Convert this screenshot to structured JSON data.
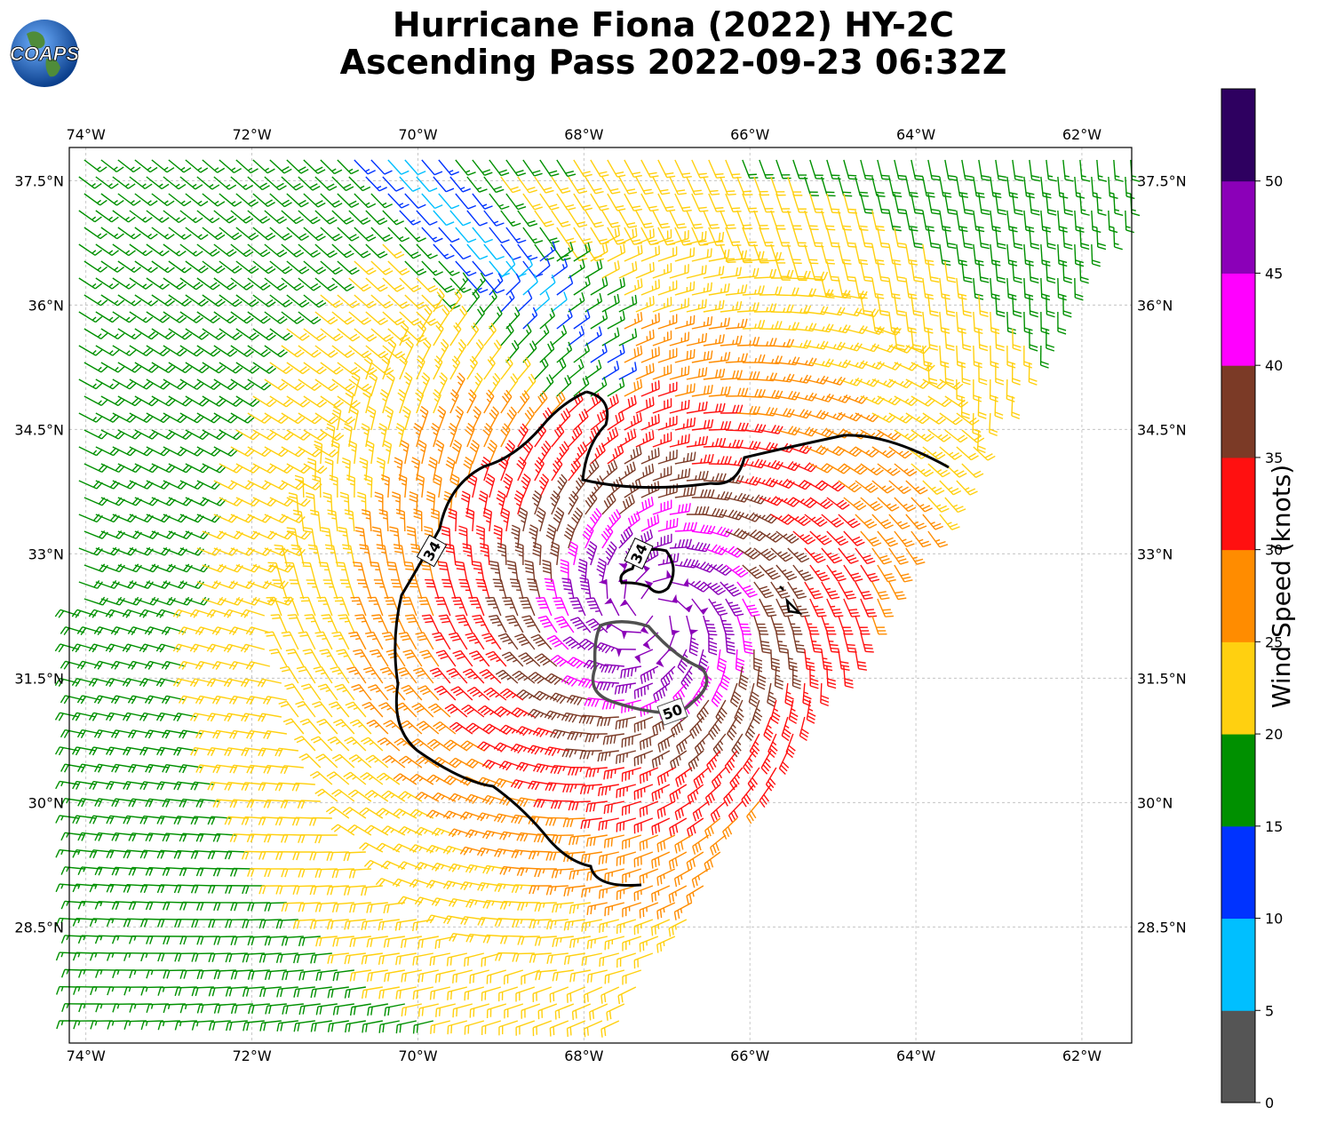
{
  "title_line1": "Hurricane Fiona (2022) HY-2C",
  "title_line2": "Ascending Pass 2022-09-23 06:32Z",
  "logo_text": "COAPS",
  "map": {
    "lon_range": [
      -74.2,
      -61.4
    ],
    "lat_range": [
      27.1,
      37.9
    ],
    "lon_ticks": [
      "74°W",
      "72°W",
      "70°W",
      "68°W",
      "66°W",
      "64°W",
      "62°W"
    ],
    "lat_ticks": [
      "37.5°N",
      "36°N",
      "34.5°N",
      "33°N",
      "31.5°N",
      "30°N",
      "28.5°N"
    ],
    "gridlines": true,
    "storm_center": {
      "lon": -67.2,
      "lat": 32.3
    }
  },
  "contours": {
    "labels": [
      "34",
      "34",
      "50"
    ],
    "colors": {
      "34": "#000000",
      "50": "#505050"
    }
  },
  "colorbar": {
    "label": "Wind Speed (knots)",
    "ticks": [
      "0",
      "5",
      "10",
      "15",
      "20",
      "25",
      "30",
      "35",
      "40",
      "45",
      "50"
    ],
    "colors": [
      "#555555",
      "#00bfff",
      "#0033ff",
      "#009000",
      "#ffd010",
      "#ff8c00",
      "#ff1010",
      "#7b3a26",
      "#ff00ff",
      "#8b00b8",
      "#2e0060"
    ]
  }
}
